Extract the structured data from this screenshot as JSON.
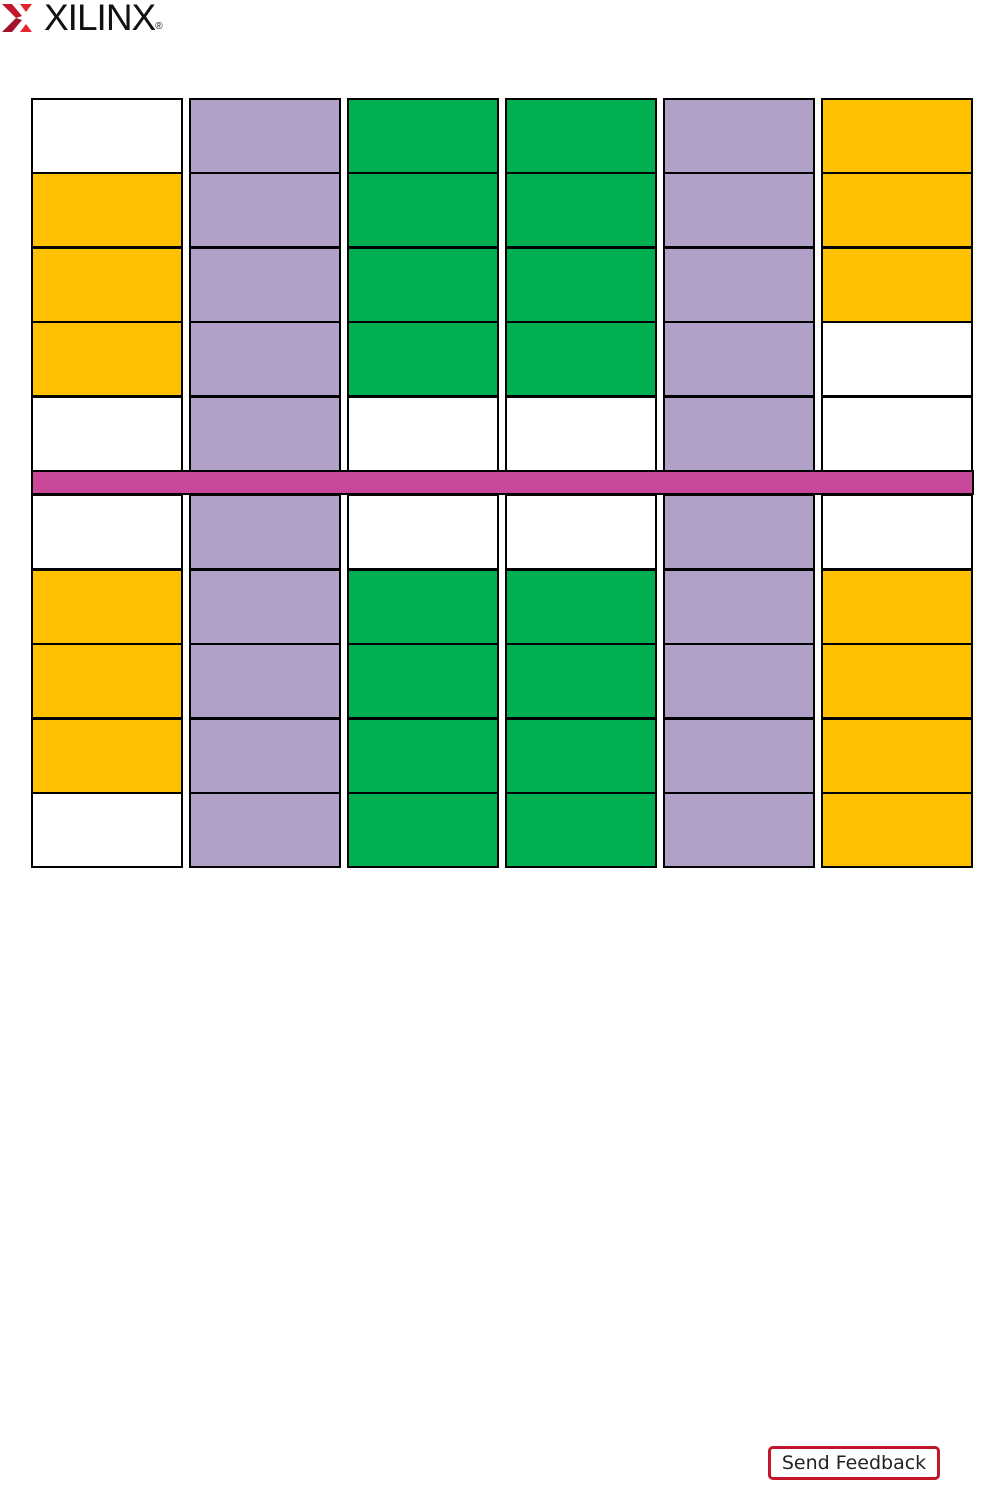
{
  "header": {
    "logo_text": "XILINX",
    "logo_mark": "®",
    "logo_color": "#c4162a"
  },
  "diagram": {
    "colors": {
      "W": "#ffffff",
      "Y": "#ffc000",
      "P": "#b1a0c7",
      "G": "#00b050",
      "M": "#c9489a"
    },
    "top_rows": [
      [
        "W",
        "P",
        "G",
        "G",
        "P",
        "Y"
      ],
      [
        "Y",
        "P",
        "G",
        "G",
        "P",
        "Y"
      ],
      [
        "Y",
        "P",
        "G",
        "G",
        "P",
        "Y"
      ],
      [
        "Y",
        "P",
        "G",
        "G",
        "P",
        "W"
      ],
      [
        "W",
        "P",
        "W",
        "W",
        "P",
        "W"
      ]
    ],
    "divider_color": "M",
    "bottom_rows": [
      [
        "W",
        "P",
        "W",
        "W",
        "P",
        "W"
      ],
      [
        "Y",
        "P",
        "G",
        "G",
        "P",
        "Y"
      ],
      [
        "Y",
        "P",
        "G",
        "G",
        "P",
        "Y"
      ],
      [
        "Y",
        "P",
        "G",
        "G",
        "P",
        "Y"
      ],
      [
        "W",
        "P",
        "G",
        "G",
        "P",
        "Y"
      ]
    ]
  },
  "footer": {
    "feedback_label": "Send Feedback"
  }
}
